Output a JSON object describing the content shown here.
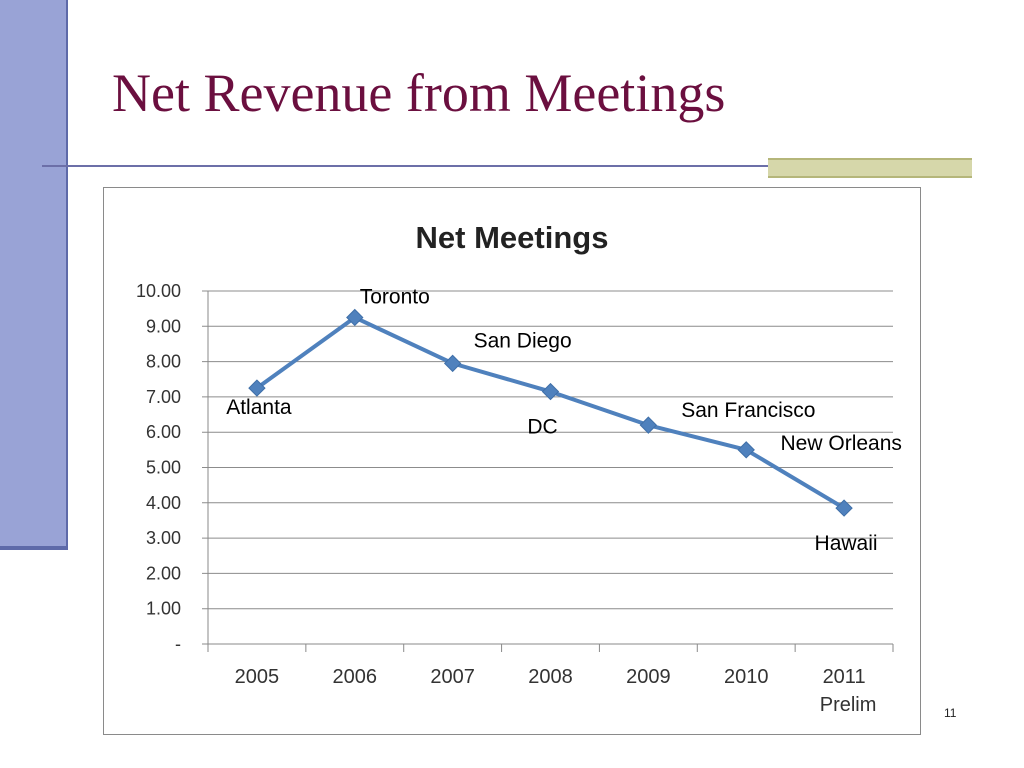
{
  "slide": {
    "title": "Net Revenue from Meetings",
    "page_number": "11"
  },
  "colors": {
    "title": "#6b0f3f",
    "sidebar": "#99a3d6",
    "series": "#4f81bd",
    "accent": "#d6d7aa"
  },
  "chart_data": {
    "type": "line",
    "title": "Net Meetings",
    "xlabel": "",
    "ylabel": "",
    "ylim": [
      0,
      10
    ],
    "grid": true,
    "legend": "none",
    "y_ticks": [
      "-",
      "1.00",
      "2.00",
      "3.00",
      "4.00",
      "5.00",
      "6.00",
      "7.00",
      "8.00",
      "9.00",
      "10.00"
    ],
    "categories": [
      "2005",
      "2006",
      "2007",
      "2008",
      "2009",
      "2010",
      "2011"
    ],
    "category_sublabels": [
      "",
      "",
      "",
      "",
      "",
      "",
      "Prelim"
    ],
    "series": [
      {
        "values": [
          7.25,
          9.25,
          7.95,
          7.15,
          6.2,
          5.5,
          3.85
        ],
        "point_labels": [
          "Atlanta",
          "Toronto",
          "San Diego",
          "DC",
          "San Francisco",
          "New Orleans",
          "Hawaii"
        ]
      }
    ]
  }
}
